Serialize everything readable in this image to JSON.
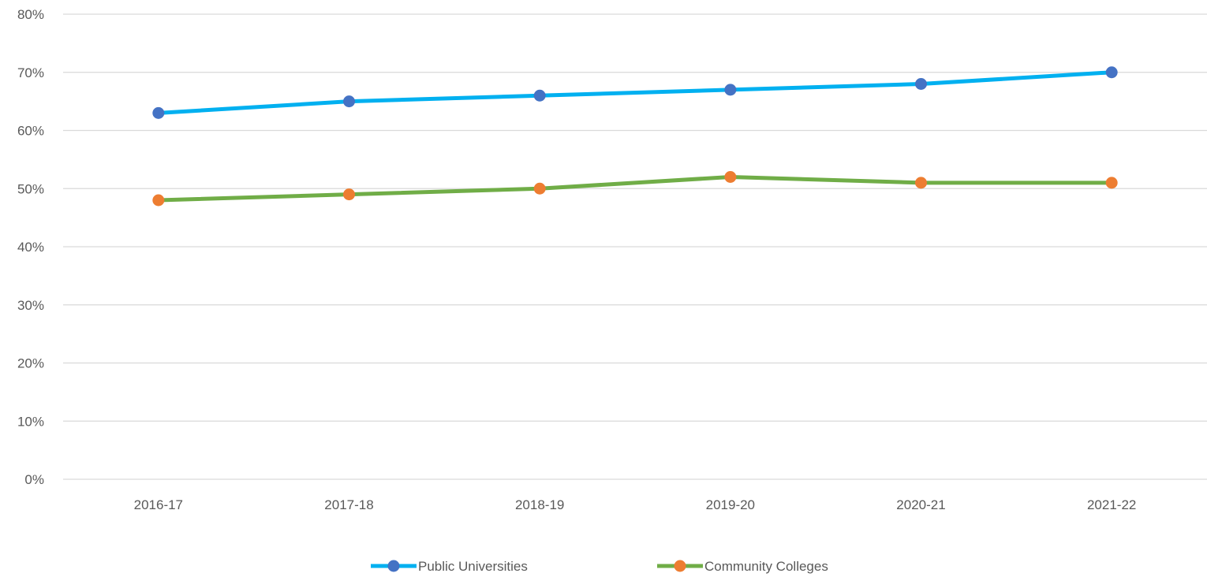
{
  "chart_data": {
    "type": "line",
    "title": "",
    "xlabel": "",
    "ylabel": "",
    "categories": [
      "2016-17",
      "2017-18",
      "2018-19",
      "2019-20",
      "2020-21",
      "2021-22"
    ],
    "ylim": [
      0,
      80
    ],
    "y_ticks": [
      0,
      10,
      20,
      30,
      40,
      50,
      60,
      70,
      80
    ],
    "y_tick_labels": [
      "0%",
      "10%",
      "20%",
      "30%",
      "40%",
      "50%",
      "60%",
      "70%",
      "80%"
    ],
    "grid": true,
    "legend_position": "bottom",
    "series": [
      {
        "name": "Public Universities",
        "values": [
          63,
          65,
          66,
          67,
          68,
          70
        ],
        "line_color": "#00B0F0",
        "marker_color": "#4472C4"
      },
      {
        "name": "Community Colleges",
        "values": [
          48,
          49,
          50,
          52,
          51,
          51
        ],
        "line_color": "#70AD47",
        "marker_color": "#ED7D31"
      }
    ],
    "gridline_color": "#D9D9D9"
  }
}
